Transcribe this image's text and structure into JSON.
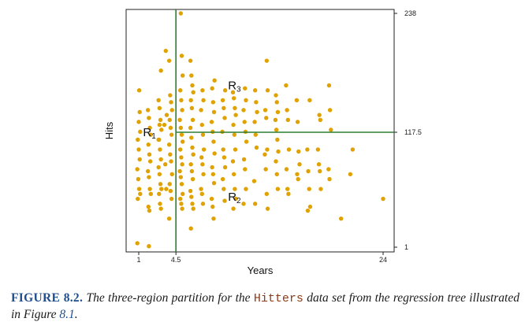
{
  "chart_data": {
    "type": "scatter",
    "title": "",
    "xlabel": "Years",
    "ylabel": "Hits",
    "xlim": [
      0,
      25
    ],
    "ylim": [
      1,
      238
    ],
    "x_ticks": [
      {
        "value": 1,
        "label": "1"
      },
      {
        "value": 4.5,
        "label": "4.5"
      },
      {
        "value": 24,
        "label": "24"
      }
    ],
    "y_ticks_right": [
      {
        "value": 238,
        "label": "238"
      },
      {
        "value": 117.5,
        "label": "117.5"
      },
      {
        "value": 1,
        "label": "1"
      }
    ],
    "partition": {
      "vertical_split": {
        "x": 4.5
      },
      "horizontal_split": {
        "y": 117.5,
        "x_from": 4.5,
        "x_to": 25
      },
      "line_color": "#2e7d32"
    },
    "regions": [
      {
        "name": "R",
        "sub": "1",
        "x": 1.4,
        "y": 117.5
      },
      {
        "name": "R",
        "sub": "2",
        "x": 9.4,
        "y": 52
      },
      {
        "name": "R",
        "sub": "3",
        "x": 9.4,
        "y": 165
      }
    ],
    "point_color": "#e0a200",
    "points": [
      [
        1,
        5
      ],
      [
        2,
        2
      ],
      [
        1,
        160
      ],
      [
        1,
        118
      ],
      [
        1,
        110
      ],
      [
        1,
        100
      ],
      [
        1,
        90
      ],
      [
        1,
        80
      ],
      [
        1,
        70
      ],
      [
        1,
        60
      ],
      [
        1,
        55
      ],
      [
        1,
        50
      ],
      [
        1,
        128
      ],
      [
        1,
        138
      ],
      [
        2,
        140
      ],
      [
        2,
        132
      ],
      [
        2,
        122
      ],
      [
        2,
        115
      ],
      [
        2,
        105
      ],
      [
        2,
        95
      ],
      [
        2,
        88
      ],
      [
        2,
        78
      ],
      [
        2,
        72
      ],
      [
        2,
        60
      ],
      [
        2,
        55
      ],
      [
        2,
        42
      ],
      [
        2,
        38
      ],
      [
        3,
        180
      ],
      [
        3,
        150
      ],
      [
        3,
        142
      ],
      [
        3,
        130
      ],
      [
        3,
        120
      ],
      [
        3,
        110
      ],
      [
        3,
        100
      ],
      [
        3,
        90
      ],
      [
        3,
        82
      ],
      [
        3,
        75
      ],
      [
        3,
        65
      ],
      [
        3,
        60
      ],
      [
        3,
        55
      ],
      [
        3,
        45
      ],
      [
        3,
        40
      ],
      [
        3,
        110
      ],
      [
        3,
        125
      ],
      [
        3.5,
        200
      ],
      [
        3.5,
        135
      ],
      [
        3.5,
        125
      ],
      [
        3.5,
        85
      ],
      [
        3.5,
        60
      ],
      [
        4,
        190
      ],
      [
        4,
        155
      ],
      [
        4,
        148
      ],
      [
        4,
        140
      ],
      [
        4,
        130
      ],
      [
        4,
        122
      ],
      [
        4,
        115
      ],
      [
        4,
        105
      ],
      [
        4,
        95
      ],
      [
        4,
        88
      ],
      [
        4,
        75
      ],
      [
        4,
        65
      ],
      [
        4,
        58
      ],
      [
        4,
        50
      ],
      [
        4,
        30
      ],
      [
        5,
        238
      ],
      [
        5,
        195
      ],
      [
        5,
        175
      ],
      [
        5,
        160
      ],
      [
        5,
        150
      ],
      [
        5,
        140
      ],
      [
        5,
        130
      ],
      [
        5,
        122
      ],
      [
        5,
        115
      ],
      [
        5,
        108
      ],
      [
        5,
        100
      ],
      [
        5,
        92
      ],
      [
        5,
        85
      ],
      [
        5,
        78
      ],
      [
        5,
        72
      ],
      [
        5,
        65
      ],
      [
        5,
        55
      ],
      [
        5,
        50
      ],
      [
        5,
        45
      ],
      [
        5,
        40
      ],
      [
        6,
        190
      ],
      [
        6,
        175
      ],
      [
        6,
        165
      ],
      [
        6,
        158
      ],
      [
        6,
        150
      ],
      [
        6,
        142
      ],
      [
        6,
        130
      ],
      [
        6,
        122
      ],
      [
        6,
        112
      ],
      [
        6,
        102
      ],
      [
        6,
        95
      ],
      [
        6,
        85
      ],
      [
        6,
        78
      ],
      [
        6,
        70
      ],
      [
        6,
        58
      ],
      [
        6,
        52
      ],
      [
        6,
        45
      ],
      [
        6,
        40
      ],
      [
        6,
        20
      ],
      [
        7,
        160
      ],
      [
        7,
        150
      ],
      [
        7,
        140
      ],
      [
        7,
        125
      ],
      [
        7,
        115
      ],
      [
        7,
        100
      ],
      [
        7,
        92
      ],
      [
        7,
        85
      ],
      [
        7,
        75
      ],
      [
        7,
        60
      ],
      [
        7,
        55
      ],
      [
        7,
        45
      ],
      [
        8,
        170
      ],
      [
        8,
        162
      ],
      [
        8,
        148
      ],
      [
        8,
        138
      ],
      [
        8,
        128
      ],
      [
        8,
        118
      ],
      [
        8,
        108
      ],
      [
        8,
        96
      ],
      [
        8,
        82
      ],
      [
        8,
        75
      ],
      [
        8,
        66
      ],
      [
        8,
        50
      ],
      [
        8,
        42
      ],
      [
        8,
        30
      ],
      [
        9,
        160
      ],
      [
        9,
        150
      ],
      [
        9,
        142
      ],
      [
        9,
        132
      ],
      [
        9,
        118
      ],
      [
        9,
        100
      ],
      [
        9,
        92
      ],
      [
        9,
        82
      ],
      [
        9,
        70
      ],
      [
        9,
        60
      ],
      [
        9,
        48
      ],
      [
        10,
        158
      ],
      [
        10,
        152
      ],
      [
        10,
        142
      ],
      [
        10,
        135
      ],
      [
        10,
        125
      ],
      [
        10,
        115
      ],
      [
        10,
        100
      ],
      [
        10,
        88
      ],
      [
        10,
        75
      ],
      [
        10,
        60
      ],
      [
        10,
        50
      ],
      [
        10,
        40
      ],
      [
        11,
        162
      ],
      [
        11,
        150
      ],
      [
        11,
        140
      ],
      [
        11,
        128
      ],
      [
        11,
        118
      ],
      [
        11,
        108
      ],
      [
        11,
        90
      ],
      [
        11,
        80
      ],
      [
        11,
        60
      ],
      [
        11,
        45
      ],
      [
        12,
        160
      ],
      [
        12,
        148
      ],
      [
        12,
        138
      ],
      [
        12,
        128
      ],
      [
        12,
        115
      ],
      [
        12,
        102
      ],
      [
        12,
        68
      ],
      [
        12,
        45
      ],
      [
        13,
        190
      ],
      [
        13,
        160
      ],
      [
        13,
        140
      ],
      [
        13,
        132
      ],
      [
        13,
        100
      ],
      [
        13,
        95
      ],
      [
        13,
        80
      ],
      [
        13,
        55
      ],
      [
        13,
        40
      ],
      [
        14,
        155
      ],
      [
        14,
        148
      ],
      [
        14,
        138
      ],
      [
        14,
        130
      ],
      [
        14,
        120
      ],
      [
        14,
        110
      ],
      [
        14,
        98
      ],
      [
        14,
        88
      ],
      [
        14,
        75
      ],
      [
        14,
        60
      ],
      [
        15,
        165
      ],
      [
        15,
        140
      ],
      [
        15,
        130
      ],
      [
        15,
        100
      ],
      [
        15,
        80
      ],
      [
        15,
        60
      ],
      [
        15,
        55
      ],
      [
        16,
        150
      ],
      [
        16,
        128
      ],
      [
        16,
        98
      ],
      [
        16,
        85
      ],
      [
        16,
        75
      ],
      [
        16,
        70
      ],
      [
        17,
        150
      ],
      [
        17,
        100
      ],
      [
        17,
        78
      ],
      [
        17,
        60
      ],
      [
        17,
        42
      ],
      [
        17,
        38
      ],
      [
        18,
        135
      ],
      [
        18,
        130
      ],
      [
        18,
        100
      ],
      [
        18,
        85
      ],
      [
        18,
        78
      ],
      [
        18,
        60
      ],
      [
        19,
        165
      ],
      [
        19,
        140
      ],
      [
        19,
        120
      ],
      [
        19,
        80
      ],
      [
        19,
        70
      ],
      [
        20,
        30
      ],
      [
        21,
        100
      ],
      [
        21,
        75
      ],
      [
        24,
        50
      ]
    ]
  },
  "caption": {
    "figure_label": "FIGURE 8.2.",
    "text_before": "The three-region partition for the",
    "dataset_name": "Hitters",
    "text_middle": "data set from the regression tree illustrated in Figure",
    "figure_ref": "8.1",
    "text_end": "."
  }
}
